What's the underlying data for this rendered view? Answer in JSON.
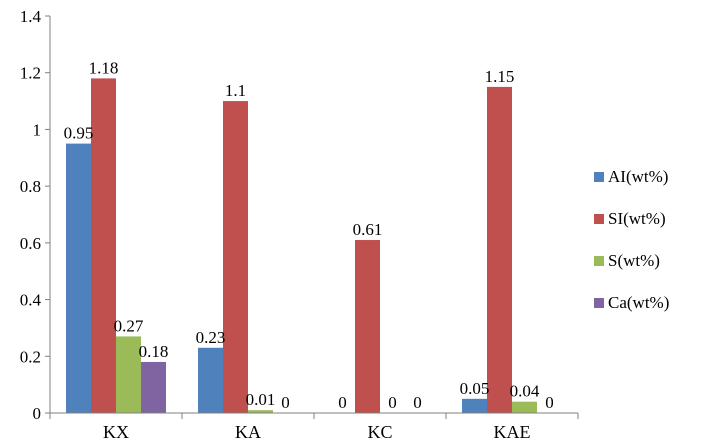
{
  "chart_data": {
    "type": "bar",
    "categories": [
      "KX",
      "KA",
      "KC",
      "KAE"
    ],
    "series": [
      {
        "name": "AI(wt%)",
        "color": "#4f81bd",
        "values": [
          0.95,
          0.23,
          0,
          0.05
        ]
      },
      {
        "name": "SI(wt%)",
        "color": "#c0504d",
        "values": [
          1.18,
          1.1,
          0.61,
          1.15
        ]
      },
      {
        "name": "S(wt%)",
        "color": "#9bbb59",
        "values": [
          0.27,
          0.01,
          0,
          0.04
        ]
      },
      {
        "name": "Ca(wt%)",
        "color": "#8064a2",
        "values": [
          0.18,
          0,
          0,
          0
        ]
      }
    ],
    "value_labels": [
      [
        "0.95",
        "0.23",
        "0",
        "0.05"
      ],
      [
        "1.18",
        "1.1",
        "0.61",
        "1.15"
      ],
      [
        "0.27",
        "0.01",
        "0",
        "0.04"
      ],
      [
        "0.18",
        "0",
        "0",
        "0"
      ]
    ],
    "yticks": [
      "0",
      "0.2",
      "0.4",
      "0.6",
      "0.8",
      "1",
      "1.2",
      "1.4"
    ],
    "ylim": [
      0,
      1.4
    ],
    "grid": false,
    "legend_position": "right",
    "title": "",
    "xlabel": "",
    "ylabel": ""
  }
}
